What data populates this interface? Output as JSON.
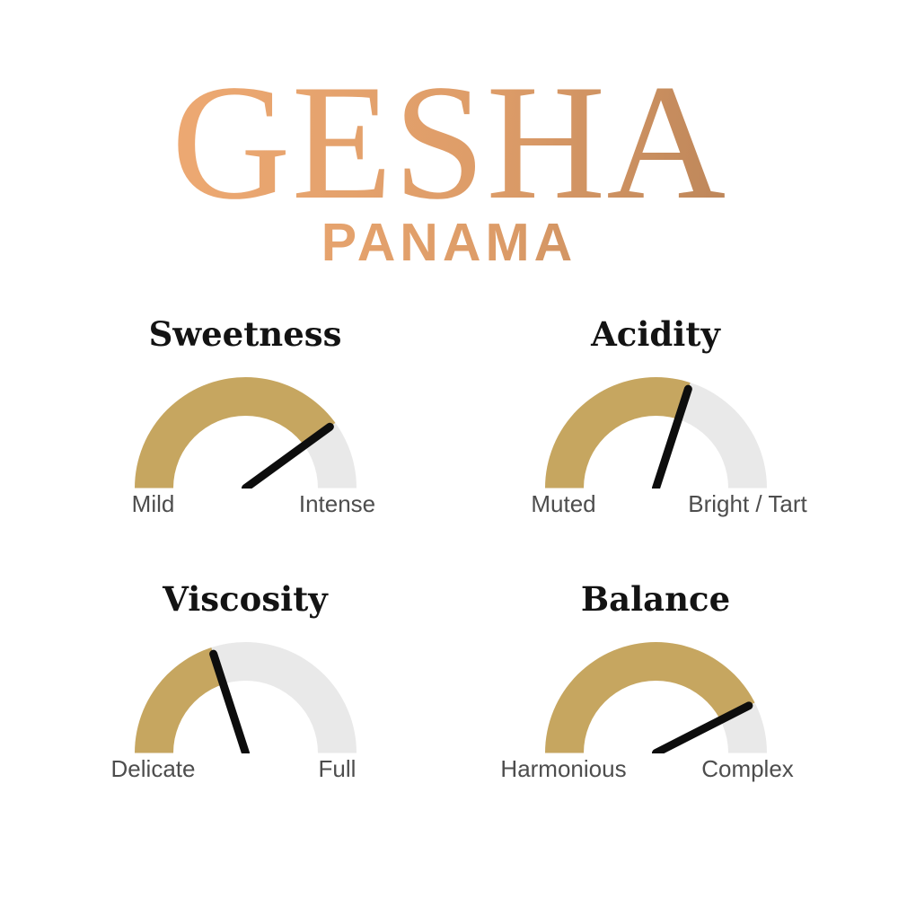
{
  "page": {
    "background": "#FFFFFF"
  },
  "header": {
    "brand": "GESHA",
    "subtitle": "PANAMA",
    "gradient_from": "#F6B078",
    "gradient_mid": "#DD9C68",
    "gradient_to": "#A77750"
  },
  "colors": {
    "gauge_fill": "#C6A660",
    "gauge_track": "#E9E9E9",
    "needle": "#0D0D0D",
    "gauge_title": "#131313",
    "gauge_label": "#4D4D4D"
  },
  "chart_data": {
    "type": "gauge",
    "title": "GESHA",
    "subtitle": "PANAMA",
    "scale_min": 0,
    "scale_max": 100,
    "layout": "2x2 grid of semicircular gauges, fill sweeps left to right",
    "series": [
      {
        "name": "Sweetness",
        "value": 80,
        "min_label": "Mild",
        "max_label": "Intense"
      },
      {
        "name": "Acidity",
        "value": 60,
        "min_label": "Muted",
        "max_label": "Bright / Tart"
      },
      {
        "name": "Viscosity",
        "value": 40,
        "min_label": "Delicate",
        "max_label": "Full"
      },
      {
        "name": "Balance",
        "value": 85,
        "min_label": "Harmonious",
        "max_label": "Complex"
      }
    ]
  }
}
